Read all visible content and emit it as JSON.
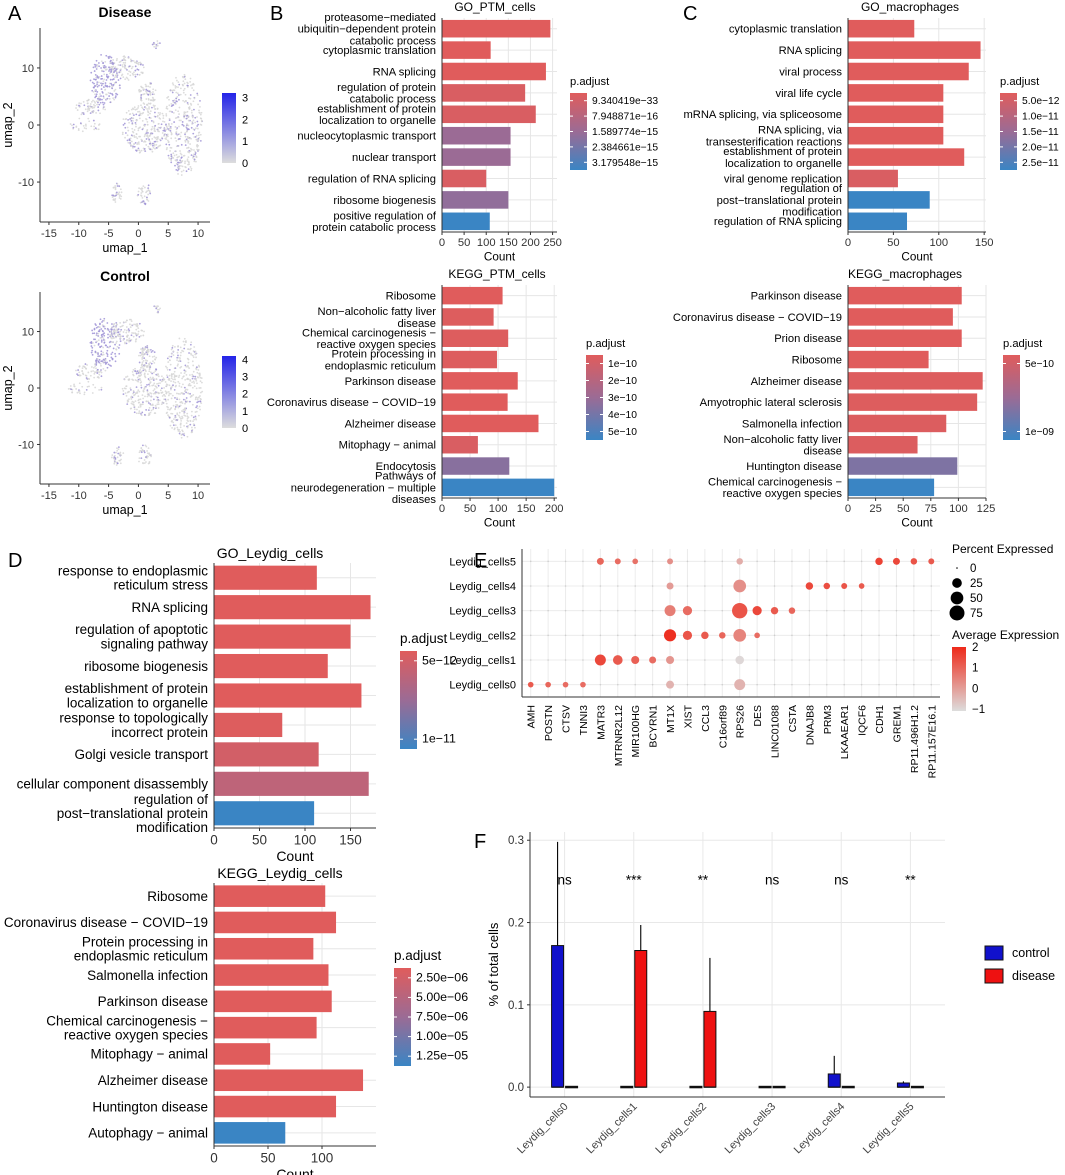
{
  "colors": {
    "pa_high": "#e05c5c",
    "pa_mid": "#9b6b95",
    "pa_low": "#3a85c4",
    "grid": "#e6e6e6",
    "umap_point": "#9f93d6",
    "umap_bg": "#d6d6d6",
    "control": "#1111cc",
    "disease": "#ee1111",
    "dot_high": "#ee2a1a",
    "dot_low": "#dddddd"
  },
  "panel_labels": [
    "A",
    "B",
    "C",
    "D",
    "E",
    "F"
  ],
  "chart_data": [
    {
      "id": "A1",
      "type": "scatter",
      "title": "Disease",
      "xlabel": "umap_1",
      "ylabel": "umap_2",
      "xticks": [
        -15,
        -10,
        -5,
        0,
        5,
        10
      ],
      "yticks": [
        -10,
        0,
        10
      ],
      "xlim": [
        -16.5,
        12
      ],
      "ylim": [
        -17,
        17
      ],
      "legend_ticks": [
        "3",
        "2",
        "1",
        "0"
      ],
      "legend_range": [
        0,
        3.2
      ]
    },
    {
      "id": "A2",
      "type": "scatter",
      "title": "Control",
      "xlabel": "umap_1",
      "ylabel": "umap_2",
      "xticks": [
        -15,
        -10,
        -5,
        0,
        5,
        10
      ],
      "yticks": [
        -10,
        0,
        10
      ],
      "xlim": [
        -16.5,
        12
      ],
      "ylim": [
        -17,
        17
      ],
      "legend_ticks": [
        "4",
        "3",
        "2",
        "1",
        "0"
      ],
      "legend_range": [
        0,
        4.2
      ]
    },
    {
      "id": "B1",
      "type": "bar",
      "title": "GO_PTM_cells",
      "xlabel": "Count",
      "xticks": [
        0,
        50,
        100,
        150,
        200,
        250
      ],
      "xlim": [
        0,
        260
      ],
      "categories": [
        "proteasome−mediated\nubiquitin−dependent protein\ncatabolic process",
        "cytoplasmic translation",
        "RNA splicing",
        "regulation of protein\ncatabolic process",
        "establishment of protein\nlocalization to organelle",
        "nucleocytoplasmic transport",
        "nuclear transport",
        "regulation of RNA splicing",
        "ribosome biogenesis",
        "positive regulation of\nprotein catabolic process"
      ],
      "values": [
        245,
        110,
        235,
        188,
        212,
        155,
        155,
        100,
        150,
        108
      ],
      "color_rank": [
        0,
        0,
        0,
        0.05,
        0.05,
        0.5,
        0.5,
        0.05,
        0.55,
        1
      ],
      "legend_title": "p.adjust",
      "legend_ticks": [
        "9.340419e−33",
        "7.948871e−16",
        "1.589774e−15",
        "2.384661e−15",
        "3.179548e−15"
      ]
    },
    {
      "id": "C1",
      "type": "bar",
      "title": "GO_macrophages",
      "xlabel": "Count",
      "xticks": [
        0,
        50,
        100,
        150
      ],
      "xlim": [
        0,
        152
      ],
      "categories": [
        "cytoplasmic translation",
        "RNA splicing",
        "viral process",
        "viral life cycle",
        "mRNA splicing, via spliceosome",
        "RNA splicing, via\ntransesterification reactions",
        "establishment of protein\nlocalization to organelle",
        "viral genome replication",
        "regulation of\npost−translational protein\nmodification",
        "regulation of RNA splicing"
      ],
      "values": [
        73,
        146,
        133,
        105,
        105,
        105,
        128,
        55,
        90,
        65
      ],
      "color_rank": [
        0,
        0,
        0,
        0,
        0,
        0,
        0,
        0.05,
        1,
        1
      ],
      "legend_title": "p.adjust",
      "legend_ticks": [
        "5.0e−12",
        "1.0e−11",
        "1.5e−11",
        "2.0e−11",
        "2.5e−11"
      ]
    },
    {
      "id": "B2",
      "type": "bar",
      "title": "KEGG_PTM_cells",
      "xlabel": "Count",
      "xticks": [
        0,
        50,
        100,
        150,
        200
      ],
      "xlim": [
        0,
        205
      ],
      "categories": [
        "Ribosome",
        "Non−alcoholic fatty liver\ndisease",
        "Chemical carcinogenesis −\nreactive oxygen species",
        "Protein processing in\nendoplasmic reticulum",
        "Parkinson disease",
        "Coronavirus disease − COVID−19",
        "Alzheimer disease",
        "Mitophagy − animal",
        "Endocytosis",
        "Pathways of\nneurodegeneration − multiple\ndiseases"
      ],
      "values": [
        108,
        92,
        118,
        98,
        135,
        117,
        172,
        64,
        120,
        200
      ],
      "color_rank": [
        0,
        0.02,
        0.02,
        0.02,
        0,
        0,
        0,
        0.05,
        0.6,
        1
      ],
      "legend_title": "p.adjust",
      "legend_ticks": [
        "1e−10",
        "2e−10",
        "3e−10",
        "4e−10",
        "5e−10"
      ]
    },
    {
      "id": "C2",
      "type": "bar",
      "title": "KEGG_macrophages",
      "xlabel": "Count",
      "xticks": [
        0,
        25,
        50,
        75,
        100,
        125
      ],
      "xlim": [
        0,
        125
      ],
      "categories": [
        "Parkinson disease",
        "Coronavirus disease − COVID−19",
        "Prion disease",
        "Ribosome",
        "Alzheimer disease",
        "Amyotrophic lateral sclerosis",
        "Salmonella infection",
        "Non−alcoholic fatty liver\ndisease",
        "Huntington disease",
        "Chemical carcinogenesis −\nreactive oxygen species"
      ],
      "values": [
        103,
        95,
        103,
        73,
        122,
        117,
        89,
        63,
        99,
        78
      ],
      "color_rank": [
        0,
        0,
        0,
        0,
        0.02,
        0.02,
        0.03,
        0.03,
        0.65,
        1
      ],
      "legend_title": "p.adjust",
      "legend_ticks": [
        "5e−10",
        "1e−09"
      ]
    },
    {
      "id": "D1",
      "type": "bar",
      "title": "GO_Leydig_cells",
      "xlabel": "Count",
      "xticks": [
        0,
        50,
        100,
        150
      ],
      "xlim": [
        0,
        178
      ],
      "categories": [
        "response to endoplasmic\nreticulum stress",
        "RNA splicing",
        "regulation of apoptotic\nsignaling pathway",
        "ribosome biogenesis",
        "establishment of protein\nlocalization to organelle",
        "response to topologically\nincorrect protein",
        "Golgi vesicle transport",
        "cellular component disassembly",
        "regulation of\npost−translational protein\nmodification"
      ],
      "values": [
        113,
        172,
        150,
        125,
        162,
        75,
        115,
        170,
        110
      ],
      "color_rank": [
        0,
        0,
        0,
        0,
        0,
        0.02,
        0.1,
        0.25,
        1
      ],
      "legend_title": "p.adjust",
      "legend_ticks": [
        "5e−12",
        "1e−11"
      ]
    },
    {
      "id": "D2",
      "type": "bar",
      "title": "KEGG_Leydig_cells",
      "xlabel": "Count",
      "xticks": [
        0,
        50,
        100
      ],
      "xlim": [
        0,
        150
      ],
      "categories": [
        "Ribosome",
        "Coronavirus disease − COVID−19",
        "Protein processing in\nendoplasmic reticulum",
        "Salmonella infection",
        "Parkinson disease",
        "Chemical carcinogenesis −\nreactive oxygen species",
        "Mitophagy − animal",
        "Alzheimer disease",
        "Huntington disease",
        "Autophagy − animal"
      ],
      "values": [
        103,
        113,
        92,
        106,
        109,
        95,
        52,
        138,
        113,
        66
      ],
      "color_rank": [
        0,
        0,
        0,
        0,
        0,
        0,
        0,
        0,
        0,
        1
      ],
      "legend_title": "p.adjust",
      "legend_ticks": [
        "2.50e−06",
        "5.00e−06",
        "7.50e−06",
        "1.00e−05",
        "1.25e−05"
      ]
    },
    {
      "id": "E",
      "type": "dotplot",
      "genes": [
        "AMH",
        "POSTN",
        "CTSV",
        "TNNI3",
        "MATR3",
        "MTRNR2L12",
        "MIR100HG",
        "BCYRN1",
        "MT1X",
        "XIST",
        "CCL3",
        "C16orf89",
        "RPS26",
        "DES",
        "LINC01088",
        "CSTA",
        "DNAJB8",
        "PRM3",
        "LKAAEAR1",
        "IQCF6",
        "CDH1",
        "GREM1",
        "RP11.496H1.2",
        "RP11.157E16.1"
      ],
      "clusters": [
        "Leydig_cells0",
        "Leydig_cells1",
        "Leydig_cells2",
        "Leydig_cells3",
        "Leydig_cells4",
        "Leydig_cells5"
      ],
      "size_legend_title": "Percent Expressed",
      "size_legend": [
        "0",
        "25",
        "50",
        "75"
      ],
      "color_legend_title": "Average Expression",
      "color_legend": [
        "2",
        "1",
        "0",
        "−1"
      ],
      "dots": [
        [
          [
            5,
            1.2
          ],
          [
            5,
            1
          ],
          [
            5,
            0.9
          ],
          [
            5,
            0.9
          ],
          [
            0,
            0
          ],
          [
            0,
            0
          ],
          [
            0,
            0
          ],
          [
            0,
            0
          ],
          [
            15,
            -0.3
          ],
          [
            0,
            0
          ],
          [
            0,
            0
          ],
          [
            0,
            0
          ],
          [
            35,
            -0.3
          ],
          [
            0,
            0
          ],
          [
            0,
            0
          ],
          [
            0,
            0
          ],
          [
            0,
            0
          ],
          [
            0,
            0
          ],
          [
            0,
            0
          ],
          [
            0,
            0
          ],
          [
            0,
            0
          ],
          [
            0,
            0
          ],
          [
            0,
            0
          ],
          [
            0,
            0
          ]
        ],
        [
          [
            0,
            0
          ],
          [
            0,
            0
          ],
          [
            0,
            0
          ],
          [
            0,
            0
          ],
          [
            35,
            1.5
          ],
          [
            25,
            1.2
          ],
          [
            15,
            1.1
          ],
          [
            10,
            0.9
          ],
          [
            15,
            0.2
          ],
          [
            0,
            0
          ],
          [
            0,
            0
          ],
          [
            0,
            0
          ],
          [
            18,
            -0.9
          ],
          [
            0,
            0
          ],
          [
            0,
            0
          ],
          [
            0,
            0
          ],
          [
            0,
            0
          ],
          [
            0,
            0
          ],
          [
            0,
            0
          ],
          [
            0,
            0
          ],
          [
            0,
            0
          ],
          [
            0,
            0
          ],
          [
            0,
            0
          ],
          [
            0,
            0
          ]
        ],
        [
          [
            0,
            0
          ],
          [
            0,
            0
          ],
          [
            0,
            0
          ],
          [
            0,
            0
          ],
          [
            0,
            0
          ],
          [
            0,
            0
          ],
          [
            0,
            0
          ],
          [
            0,
            0
          ],
          [
            45,
            1.9
          ],
          [
            22,
            1.3
          ],
          [
            12,
            1.2
          ],
          [
            8,
            1
          ],
          [
            50,
            0.5
          ],
          [
            5,
            0.9
          ],
          [
            0,
            0
          ],
          [
            0,
            0
          ],
          [
            0,
            0
          ],
          [
            0,
            0
          ],
          [
            0,
            0
          ],
          [
            0,
            0
          ],
          [
            0,
            0
          ],
          [
            0,
            0
          ],
          [
            0,
            0
          ],
          [
            0,
            0
          ]
        ],
        [
          [
            0,
            0
          ],
          [
            0,
            0
          ],
          [
            0,
            0
          ],
          [
            0,
            0
          ],
          [
            0,
            0
          ],
          [
            0,
            0
          ],
          [
            0,
            0
          ],
          [
            0,
            0
          ],
          [
            35,
            0.6
          ],
          [
            22,
            0.9
          ],
          [
            0,
            0
          ],
          [
            0,
            0
          ],
          [
            80,
            1.3
          ],
          [
            22,
            1.5
          ],
          [
            12,
            1.2
          ],
          [
            8,
            1
          ],
          [
            0,
            0
          ],
          [
            0,
            0
          ],
          [
            0,
            0
          ],
          [
            0,
            0
          ],
          [
            0,
            0
          ],
          [
            0,
            0
          ],
          [
            0,
            0
          ],
          [
            0,
            0
          ]
        ],
        [
          [
            0,
            0
          ],
          [
            0,
            0
          ],
          [
            0,
            0
          ],
          [
            0,
            0
          ],
          [
            0,
            0
          ],
          [
            0,
            0
          ],
          [
            0,
            0
          ],
          [
            0,
            0
          ],
          [
            10,
            0.1
          ],
          [
            0,
            0
          ],
          [
            0,
            0
          ],
          [
            0,
            0
          ],
          [
            50,
            0.3
          ],
          [
            0,
            0
          ],
          [
            0,
            0
          ],
          [
            0,
            0
          ],
          [
            12,
            1.5
          ],
          [
            8,
            1.4
          ],
          [
            6,
            1.3
          ],
          [
            5,
            1.2
          ],
          [
            0,
            0
          ],
          [
            0,
            0
          ],
          [
            0,
            0
          ],
          [
            0,
            0
          ]
        ],
        [
          [
            0,
            0
          ],
          [
            0,
            0
          ],
          [
            0,
            0
          ],
          [
            0,
            0
          ],
          [
            10,
            1
          ],
          [
            6,
            0.9
          ],
          [
            5,
            0.8
          ],
          [
            0,
            0
          ],
          [
            6,
            0.3
          ],
          [
            0,
            0
          ],
          [
            0,
            0
          ],
          [
            0,
            0
          ],
          [
            8,
            -0.2
          ],
          [
            0,
            0
          ],
          [
            0,
            0
          ],
          [
            0,
            0
          ],
          [
            0,
            0
          ],
          [
            0,
            0
          ],
          [
            0,
            0
          ],
          [
            0,
            0
          ],
          [
            12,
            1.6
          ],
          [
            10,
            1.5
          ],
          [
            8,
            1.3
          ],
          [
            6,
            1.2
          ]
        ]
      ]
    },
    {
      "id": "F",
      "type": "bar",
      "ylabel": "% of total cells",
      "yticks": [
        "0.0",
        "0.1",
        "0.2",
        "0.3"
      ],
      "ylim": [
        -0.012,
        0.31
      ],
      "categories": [
        "Leydig_cells0",
        "Leydig_cells1",
        "Leydig_cells2",
        "Leydig_cells3",
        "Leydig_cells4",
        "Leydig_cells5"
      ],
      "series": [
        {
          "name": "control",
          "values": [
            0.172,
            0.001,
            0.001,
            0.001,
            0.016,
            0.005
          ],
          "error_upper": [
            0.298,
            0.001,
            0.001,
            0.001,
            0.038,
            0.007
          ]
        },
        {
          "name": "disease",
          "values": [
            0.001,
            0.166,
            0.092,
            0.001,
            0.001,
            0.001
          ],
          "error_upper": [
            0.001,
            0.197,
            0.157,
            0.001,
            0.001,
            0.001
          ]
        }
      ],
      "significance": [
        "ns",
        "***",
        "**",
        "ns",
        "ns",
        "**"
      ],
      "legend": [
        "control",
        "disease"
      ]
    }
  ]
}
